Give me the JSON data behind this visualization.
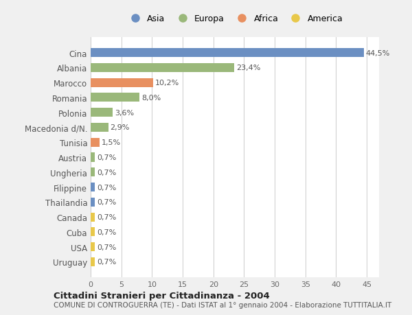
{
  "categories": [
    "Uruguay",
    "USA",
    "Cuba",
    "Canada",
    "Thailandia",
    "Filippine",
    "Ungheria",
    "Austria",
    "Tunisia",
    "Macedonia d/N.",
    "Polonia",
    "Romania",
    "Marocco",
    "Albania",
    "Cina"
  ],
  "values": [
    0.7,
    0.7,
    0.7,
    0.7,
    0.7,
    0.7,
    0.7,
    0.7,
    1.5,
    2.9,
    3.6,
    8.0,
    10.2,
    23.4,
    44.5
  ],
  "labels": [
    "0,7%",
    "0,7%",
    "0,7%",
    "0,7%",
    "0,7%",
    "0,7%",
    "0,7%",
    "0,7%",
    "1,5%",
    "2,9%",
    "3,6%",
    "8,0%",
    "10,2%",
    "23,4%",
    "44,5%"
  ],
  "colors": [
    "#e8c84a",
    "#e8c84a",
    "#e8c84a",
    "#e8c84a",
    "#6b8fc2",
    "#6b8fc2",
    "#9ab87a",
    "#9ab87a",
    "#e89060",
    "#9ab87a",
    "#9ab87a",
    "#9ab87a",
    "#e89060",
    "#9ab87a",
    "#6b8fc2"
  ],
  "legend": [
    {
      "label": "Asia",
      "color": "#6b8fc2"
    },
    {
      "label": "Europa",
      "color": "#9ab87a"
    },
    {
      "label": "Africa",
      "color": "#e89060"
    },
    {
      "label": "America",
      "color": "#e8c84a"
    }
  ],
  "title1": "Cittadini Stranieri per Cittadinanza - 2004",
  "title2": "COMUNE DI CONTROGUERRA (TE) - Dati ISTAT al 1° gennaio 2004 - Elaborazione TUTTITALIA.IT",
  "xlim": [
    0,
    47
  ],
  "xticks": [
    0,
    5,
    10,
    15,
    20,
    25,
    30,
    35,
    40,
    45
  ],
  "background_color": "#f0f0f0",
  "plot_bg_color": "#ffffff"
}
